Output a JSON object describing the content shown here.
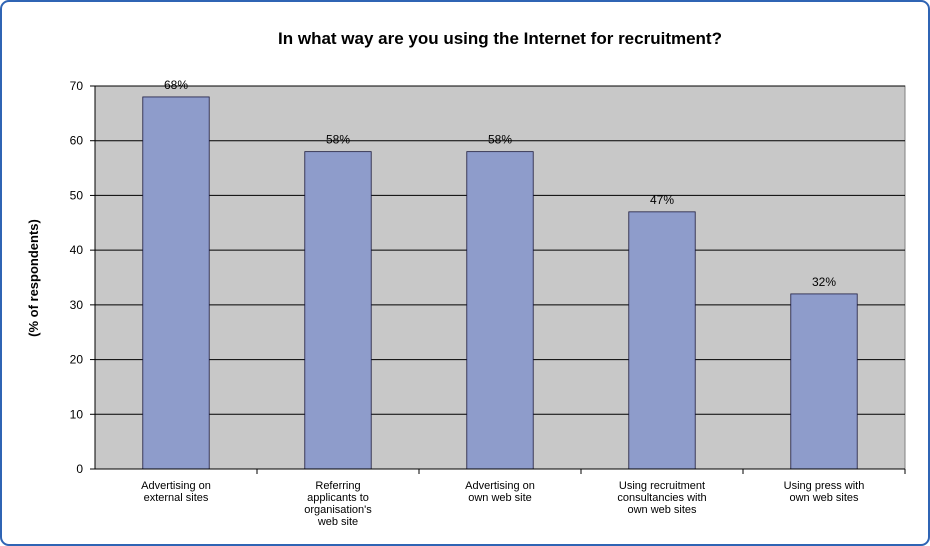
{
  "chart_data": {
    "type": "bar",
    "title": "In what way are you using the Internet for recruitment?",
    "y_label": "(% of respondents)",
    "categories": [
      "Advertising on\nexternal sites",
      "Referring\napplicants to\norganisation's\nweb site",
      "Advertising on\nown web site",
      "Using recruitment\nconsultancies with\nown web sites",
      "Using press with\nown web sites"
    ],
    "values": [
      68,
      58,
      58,
      47,
      32
    ],
    "value_labels": [
      "68%",
      "58%",
      "58%",
      "47%",
      "32%"
    ],
    "color": "#8e9ccb",
    "ylim": [
      0,
      70
    ],
    "yticks": [
      0,
      10,
      20,
      30,
      40,
      50,
      60,
      70
    ],
    "grid": true
  }
}
